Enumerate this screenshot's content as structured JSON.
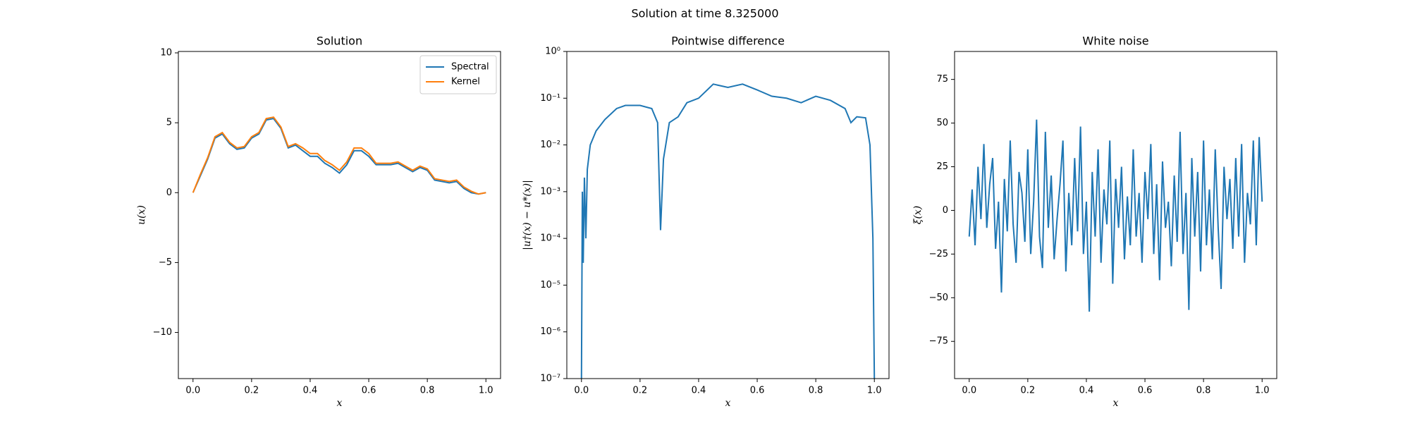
{
  "suptitle": "Solution at time 8.325000",
  "chart_data": [
    {
      "type": "line",
      "title": "Solution",
      "xlabel": "x",
      "ylabel": "u(x)",
      "xlim": [
        -0.05,
        1.05
      ],
      "ylim": [
        -13.3,
        10.1
      ],
      "xticks": [
        {
          "value": 0,
          "label": "0.0"
        },
        0.2,
        0.4,
        0.6,
        0.8,
        {
          "value": 1,
          "label": "1.0"
        }
      ],
      "yticks": [
        {
          "value": -10,
          "label": "−10"
        },
        {
          "value": -5,
          "label": "−5"
        },
        0,
        5,
        10
      ],
      "legend": "upper right",
      "x": [
        0,
        0.025,
        0.05,
        0.075,
        0.1,
        0.125,
        0.15,
        0.175,
        0.2,
        0.225,
        0.25,
        0.275,
        0.3,
        0.325,
        0.35,
        0.375,
        0.4,
        0.425,
        0.45,
        0.475,
        0.5,
        0.525,
        0.55,
        0.575,
        0.6,
        0.625,
        0.65,
        0.675,
        0.7,
        0.725,
        0.75,
        0.775,
        0.8,
        0.825,
        0.85,
        0.875,
        0.9,
        0.925,
        0.95,
        0.975,
        1
      ],
      "series": [
        {
          "name": "Spectral",
          "color": "#1f77b4",
          "values": [
            0,
            1.2,
            2.4,
            3.9,
            4.2,
            3.5,
            3.1,
            3.2,
            3.9,
            4.2,
            5.2,
            5.3,
            4.6,
            3.2,
            3.4,
            3.0,
            2.6,
            2.6,
            2.1,
            1.8,
            1.4,
            2.0,
            3.0,
            3.0,
            2.6,
            2.0,
            2.0,
            2.0,
            2.1,
            1.8,
            1.5,
            1.8,
            1.6,
            0.9,
            0.8,
            0.7,
            0.8,
            0.3,
            0.0,
            -0.1,
            0.0
          ]
        },
        {
          "name": "Kernel",
          "color": "#ff7f0e",
          "values": [
            0,
            1.3,
            2.5,
            4.0,
            4.3,
            3.6,
            3.2,
            3.3,
            4.0,
            4.3,
            5.3,
            5.4,
            4.7,
            3.3,
            3.5,
            3.2,
            2.8,
            2.8,
            2.3,
            2.0,
            1.6,
            2.2,
            3.2,
            3.2,
            2.8,
            2.1,
            2.1,
            2.1,
            2.2,
            1.9,
            1.6,
            1.9,
            1.7,
            1.0,
            0.9,
            0.8,
            0.9,
            0.4,
            0.1,
            -0.1,
            0.0
          ]
        }
      ]
    },
    {
      "type": "line",
      "title": "Pointwise difference",
      "xlabel": "x",
      "ylabel": "|u†(x) − u*(x)|",
      "log_y": true,
      "color": "#1f77b4",
      "xlim": [
        -0.05,
        1.05
      ],
      "ylim": [
        1e-07,
        1
      ],
      "xticks": [
        {
          "value": 0,
          "label": "0.0"
        },
        0.2,
        0.4,
        0.6,
        0.8,
        {
          "value": 1,
          "label": "1.0"
        }
      ],
      "yticks": [
        {
          "value": 1e-07,
          "label": "10⁻⁷"
        },
        {
          "value": 1e-06,
          "label": "10⁻⁶"
        },
        {
          "value": 1e-05,
          "label": "10⁻⁵"
        },
        {
          "value": 0.0001,
          "label": "10⁻⁴"
        },
        {
          "value": 0.001,
          "label": "10⁻³"
        },
        {
          "value": 0.01,
          "label": "10⁻²"
        },
        {
          "value": 0.1,
          "label": "10⁻¹"
        },
        {
          "value": 1,
          "label": "10⁰"
        }
      ],
      "x": [
        0,
        0.003,
        0.006,
        0.01,
        0.015,
        0.02,
        0.03,
        0.05,
        0.08,
        0.12,
        0.15,
        0.2,
        0.24,
        0.26,
        0.27,
        0.28,
        0.3,
        0.33,
        0.36,
        0.4,
        0.45,
        0.5,
        0.55,
        0.6,
        0.65,
        0.7,
        0.75,
        0.8,
        0.85,
        0.9,
        0.92,
        0.94,
        0.97,
        0.985,
        0.995,
        1
      ],
      "values": [
        1e-07,
        0.001,
        3e-05,
        0.002,
        0.0001,
        0.003,
        0.01,
        0.02,
        0.035,
        0.06,
        0.07,
        0.07,
        0.06,
        0.03,
        0.00015,
        0.005,
        0.03,
        0.04,
        0.08,
        0.1,
        0.2,
        0.17,
        0.2,
        0.15,
        0.11,
        0.1,
        0.08,
        0.11,
        0.09,
        0.06,
        0.03,
        0.04,
        0.038,
        0.01,
        0.0001,
        1e-07
      ]
    },
    {
      "type": "line",
      "title": "White noise",
      "xlabel": "x",
      "ylabel": "ξ(x)",
      "color": "#1f77b4",
      "xlim": [
        -0.05,
        1.05
      ],
      "ylim": [
        -96.3,
        91
      ],
      "xticks": [
        {
          "value": 0,
          "label": "0.0"
        },
        0.2,
        0.4,
        0.6,
        0.8,
        {
          "value": 1,
          "label": "1.0"
        }
      ],
      "yticks": [
        {
          "value": -75,
          "label": "−75"
        },
        {
          "value": -50,
          "label": "−50"
        },
        {
          "value": -25,
          "label": "−25"
        },
        0,
        25,
        50,
        75
      ],
      "x": [
        0,
        0.01,
        0.02,
        0.03,
        0.04,
        0.05,
        0.06,
        0.07,
        0.08,
        0.09,
        0.1,
        0.11,
        0.12,
        0.13,
        0.14,
        0.15,
        0.16,
        0.17,
        0.18,
        0.19,
        0.2,
        0.21,
        0.22,
        0.23,
        0.24,
        0.25,
        0.26,
        0.27,
        0.28,
        0.29,
        0.3,
        0.31,
        0.32,
        0.33,
        0.34,
        0.35,
        0.36,
        0.37,
        0.38,
        0.39,
        0.4,
        0.41,
        0.42,
        0.43,
        0.44,
        0.45,
        0.46,
        0.47,
        0.48,
        0.49,
        0.5,
        0.51,
        0.52,
        0.53,
        0.54,
        0.55,
        0.56,
        0.57,
        0.58,
        0.59,
        0.6,
        0.61,
        0.62,
        0.63,
        0.64,
        0.65,
        0.66,
        0.67,
        0.68,
        0.69,
        0.7,
        0.71,
        0.72,
        0.73,
        0.74,
        0.75,
        0.76,
        0.77,
        0.78,
        0.79,
        0.8,
        0.81,
        0.82,
        0.83,
        0.84,
        0.85,
        0.86,
        0.87,
        0.88,
        0.89,
        0.9,
        0.91,
        0.92,
        0.93,
        0.94,
        0.95,
        0.96,
        0.97,
        0.98,
        0.99,
        1
      ],
      "values": [
        -15,
        12,
        -20,
        25,
        -5,
        38,
        -10,
        15,
        30,
        -22,
        5,
        -47,
        18,
        -12,
        40,
        -8,
        -30,
        22,
        10,
        -18,
        35,
        -25,
        5,
        52,
        -15,
        -33,
        45,
        -10,
        20,
        -28,
        -5,
        15,
        40,
        -35,
        10,
        -20,
        30,
        -12,
        48,
        -25,
        5,
        -58,
        22,
        -15,
        35,
        -30,
        12,
        -8,
        40,
        -42,
        18,
        -10,
        25,
        -28,
        8,
        -20,
        35,
        -15,
        10,
        -30,
        22,
        -5,
        38,
        -25,
        15,
        -40,
        28,
        -10,
        5,
        -32,
        20,
        -18,
        45,
        -25,
        10,
        -57,
        30,
        -15,
        22,
        -35,
        40,
        -20,
        12,
        -28,
        35,
        -10,
        -45,
        25,
        -5,
        18,
        -22,
        30,
        -15,
        38,
        -30,
        10,
        -8,
        40,
        -20,
        42,
        5
      ]
    }
  ]
}
